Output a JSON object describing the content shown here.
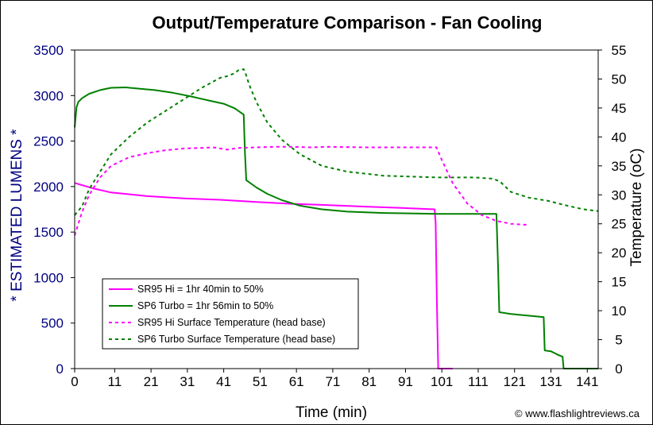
{
  "chart_data": {
    "type": "line",
    "title": "Output/Temperature Comparison - Fan Cooling",
    "xlabel": "Time (min)",
    "ylabel_left": "* ESTIMATED LUMENS *",
    "ylabel_right": "Temperature (oC)",
    "credit": "© www.flashlightreviews.ca",
    "xlim": [
      0,
      144
    ],
    "ylim_left": [
      0,
      3500
    ],
    "ylim_right": [
      0,
      55
    ],
    "x_ticks": [
      "0",
      "11",
      "21",
      "31",
      "41",
      "51",
      "61",
      "71",
      "81",
      "91",
      "101",
      "111",
      "121",
      "131",
      "141"
    ],
    "y_left_ticks": [
      "0",
      "500",
      "1000",
      "1500",
      "2000",
      "2500",
      "3000",
      "3500"
    ],
    "y_right_ticks": [
      "0",
      "5",
      "10",
      "15",
      "20",
      "25",
      "30",
      "35",
      "40",
      "45",
      "50",
      "55"
    ],
    "grid": false,
    "legend_position": "lower-left inside",
    "colors": {
      "left_axis_label": "#000080",
      "left_axis_ticks": "#000080",
      "sr95": "#ff00ff",
      "sp6": "#008000"
    },
    "series": [
      {
        "name": "SR95 Hi = 1hr 40min to 50%",
        "axis": "left",
        "style": "solid",
        "color": "#ff00ff",
        "points": [
          [
            0,
            2040
          ],
          [
            5,
            1980
          ],
          [
            10,
            1935
          ],
          [
            20,
            1895
          ],
          [
            30,
            1870
          ],
          [
            40,
            1855
          ],
          [
            50,
            1830
          ],
          [
            60,
            1810
          ],
          [
            70,
            1795
          ],
          [
            80,
            1780
          ],
          [
            90,
            1765
          ],
          [
            99,
            1750
          ],
          [
            99.3,
            1600
          ],
          [
            99.6,
            800
          ],
          [
            100,
            0
          ],
          [
            104,
            0
          ]
        ]
      },
      {
        "name": "SP6 Turbo = 1hr 56min to 50%",
        "axis": "left",
        "style": "solid",
        "color": "#008000",
        "points": [
          [
            0,
            2650
          ],
          [
            0.5,
            2870
          ],
          [
            1,
            2930
          ],
          [
            2,
            2970
          ],
          [
            4,
            3020
          ],
          [
            7,
            3060
          ],
          [
            10,
            3085
          ],
          [
            14,
            3090
          ],
          [
            18,
            3075
          ],
          [
            22,
            3060
          ],
          [
            27,
            3030
          ],
          [
            32,
            2990
          ],
          [
            37,
            2945
          ],
          [
            41,
            2910
          ],
          [
            44,
            2860
          ],
          [
            46.5,
            2790
          ],
          [
            46.8,
            2400
          ],
          [
            47.2,
            2070
          ],
          [
            50,
            1990
          ],
          [
            53,
            1920
          ],
          [
            57,
            1850
          ],
          [
            62,
            1790
          ],
          [
            68,
            1750
          ],
          [
            75,
            1725
          ],
          [
            85,
            1710
          ],
          [
            100,
            1700
          ],
          [
            112,
            1700
          ],
          [
            116,
            1700
          ],
          [
            116.4,
            1200
          ],
          [
            116.8,
            620
          ],
          [
            120,
            600
          ],
          [
            128,
            570
          ],
          [
            129,
            565
          ],
          [
            129.3,
            200
          ],
          [
            131,
            190
          ],
          [
            132,
            170
          ],
          [
            133,
            150
          ],
          [
            134.2,
            130
          ],
          [
            134.5,
            0
          ],
          [
            144,
            0
          ]
        ]
      },
      {
        "name": "SR95 Hi Surface Temperature (head base)",
        "axis": "right",
        "style": "dashed",
        "color": "#ff00ff",
        "points": [
          [
            0,
            23
          ],
          [
            2,
            27
          ],
          [
            4,
            30
          ],
          [
            7,
            33
          ],
          [
            10,
            35
          ],
          [
            15,
            36.5
          ],
          [
            20,
            37.2
          ],
          [
            25,
            37.7
          ],
          [
            30,
            38
          ],
          [
            35,
            38.1
          ],
          [
            38,
            38.2
          ],
          [
            42,
            37.8
          ],
          [
            45,
            38.1
          ],
          [
            50,
            38.2
          ],
          [
            55,
            38.3
          ],
          [
            60,
            38.3
          ],
          [
            65,
            38.2
          ],
          [
            70,
            38.3
          ],
          [
            80,
            38.2
          ],
          [
            90,
            38.2
          ],
          [
            95,
            38.2
          ],
          [
            99.5,
            38.2
          ],
          [
            101,
            36
          ],
          [
            104,
            32
          ],
          [
            108,
            28.5
          ],
          [
            112,
            26.5
          ],
          [
            116,
            25.5
          ],
          [
            120,
            25
          ],
          [
            125,
            24.8
          ]
        ]
      },
      {
        "name": "SP6 Turbo Surface Temperature (head base)",
        "axis": "right",
        "style": "dashed",
        "color": "#008000",
        "points": [
          [
            0,
            26.5
          ],
          [
            2,
            28
          ],
          [
            4,
            31
          ],
          [
            7,
            34
          ],
          [
            10,
            37
          ],
          [
            15,
            40
          ],
          [
            20,
            42.5
          ],
          [
            25,
            44.5
          ],
          [
            30,
            46.5
          ],
          [
            35,
            48.5
          ],
          [
            40,
            50.2
          ],
          [
            42,
            50.5
          ],
          [
            44,
            51
          ],
          [
            45,
            51.5
          ],
          [
            46.5,
            51.7
          ],
          [
            47,
            51
          ],
          [
            48,
            49
          ],
          [
            50,
            46
          ],
          [
            53,
            42.5
          ],
          [
            57,
            39.5
          ],
          [
            62,
            37
          ],
          [
            68,
            35
          ],
          [
            75,
            34
          ],
          [
            85,
            33.3
          ],
          [
            100,
            33
          ],
          [
            110,
            33
          ],
          [
            115,
            32.8
          ],
          [
            117,
            32.3
          ],
          [
            120,
            30.5
          ],
          [
            125,
            29.5
          ],
          [
            130,
            29
          ],
          [
            135,
            28.2
          ],
          [
            140,
            27.5
          ],
          [
            144,
            27.2
          ]
        ]
      }
    ]
  }
}
